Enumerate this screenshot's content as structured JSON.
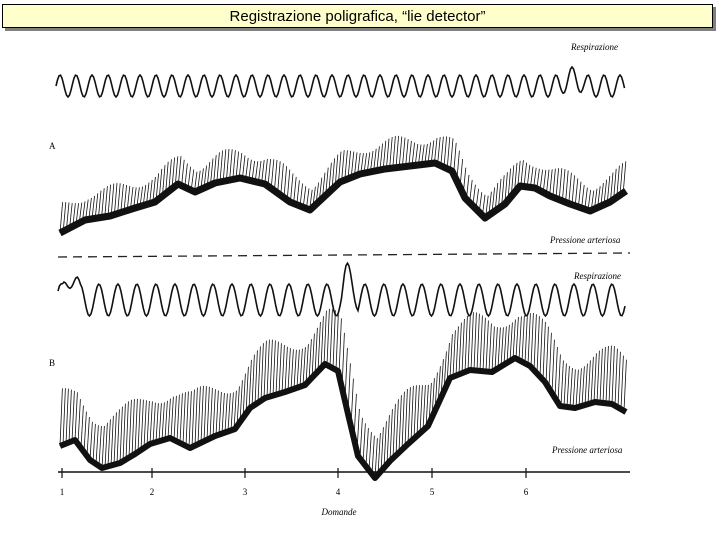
{
  "title": "Registrazione poligrafica, “lie detector”",
  "figure": {
    "panel_a": {
      "label": "A",
      "trace_labels": {
        "respiration": "Respirazione",
        "pressure": "Pressione arteriosa"
      }
    },
    "panel_b": {
      "label": "B",
      "trace_labels": {
        "respiration": "Respirazione",
        "pressure": "Pressione arteriosa"
      }
    },
    "axis": {
      "title": "Domande",
      "ticks": [
        "1",
        "2",
        "3",
        "4",
        "5",
        "6"
      ]
    }
  },
  "colors": {
    "title_background": "#ffffcc",
    "ink": "#111111"
  }
}
